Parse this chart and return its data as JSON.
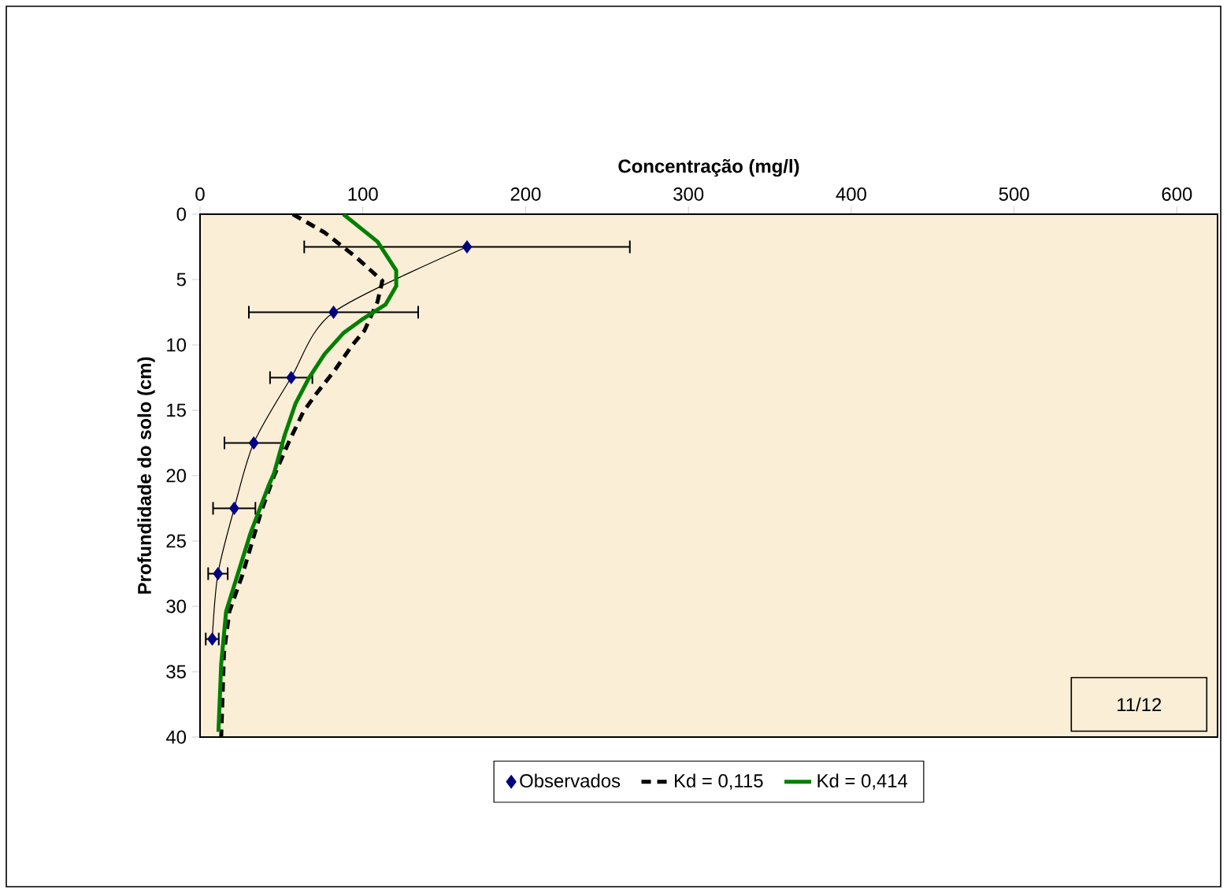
{
  "chart_data": {
    "type": "line",
    "xlabel": "Concentração (mg/l)",
    "ylabel": "Profundidade do solo (cm)",
    "xlim": [
      0,
      625
    ],
    "xticks": [
      0,
      100,
      200,
      300,
      400,
      500,
      600
    ],
    "ylim": [
      40,
      0
    ],
    "yticks": [
      0,
      5,
      10,
      15,
      20,
      25,
      30,
      35,
      40
    ],
    "legend": "bottom",
    "grid": false,
    "annotations": [
      "11/12"
    ],
    "series": [
      {
        "name": "Observados",
        "type": "scatter",
        "marker": "diamond",
        "color": "#000080",
        "x": [
          164,
          82,
          56,
          33,
          21,
          11,
          7.5
        ],
        "values": [
          2.5,
          7.5,
          12.5,
          17.5,
          22.5,
          27.5,
          32.5
        ],
        "xerrors": [
          100,
          52,
          13,
          18,
          13,
          6,
          4
        ]
      },
      {
        "marker": "none",
        "line_style": "solid",
        "color": "#000000",
        "x": [
          164,
          82,
          56,
          33,
          21,
          11,
          7.5
        ],
        "values": [
          2.5,
          7.5,
          12.5,
          17.5,
          22.5,
          27.5,
          32.5
        ]
      },
      {
        "name": "Kd = 0,115",
        "marker": "none",
        "line_style": "dashed",
        "color": "#000000",
        "x": [
          57,
          76.5,
          96,
          112,
          109,
          101,
          93,
          83,
          71.6,
          63.5,
          55,
          45.5,
          37.4,
          26,
          18,
          14.7,
          13
        ],
        "values": [
          0,
          1.4,
          3.3,
          5.1,
          6.7,
          8.9,
          10.1,
          11.9,
          13.7,
          15.1,
          17.3,
          20,
          22.8,
          27.6,
          30.4,
          33.6,
          40
        ]
      },
      {
        "name": "Kd = 0,414",
        "marker": "none",
        "line_style": "solid",
        "color": "#008000",
        "x": [
          88,
          109,
          120.5,
          120.5,
          114,
          99,
          88,
          76.5,
          67,
          58.6,
          52,
          45.5,
          42,
          31,
          21,
          16,
          13,
          11.3
        ],
        "values": [
          0,
          2.1,
          4.3,
          5.5,
          6.9,
          8.1,
          9.1,
          10.7,
          12.5,
          14.5,
          16.9,
          19.8,
          20.8,
          24.4,
          28.4,
          30.4,
          34.4,
          39.6
        ]
      }
    ]
  }
}
